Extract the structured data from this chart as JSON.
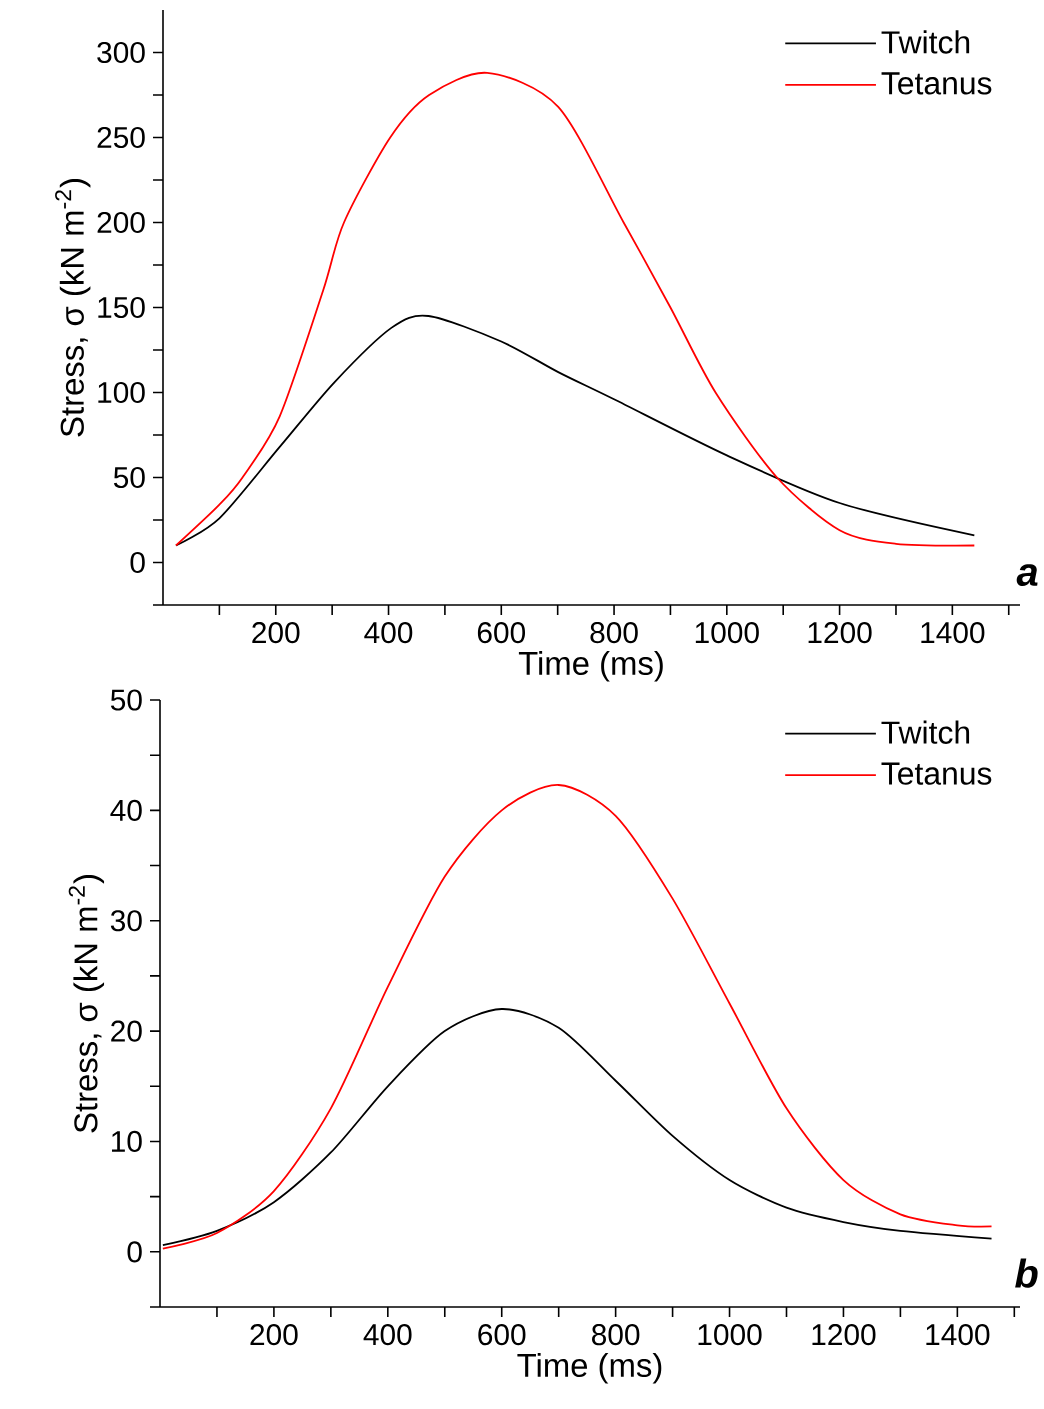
{
  "chart_data": [
    {
      "type": "line",
      "xlabel": "Time (ms)",
      "ylabel": "Stress, σ (kN m$^{-2}$)",
      "annotations": [
        "a"
      ],
      "legend": "top right",
      "xlim": [
        0,
        1520
      ],
      "ylim": [
        -25,
        325
      ],
      "xticks": [
        {
          "value": 100,
          "label": null
        },
        200,
        {
          "value": 300,
          "label": null
        },
        400,
        {
          "value": 500,
          "label": null
        },
        600,
        {
          "value": 700,
          "label": null
        },
        800,
        {
          "value": 900,
          "label": null
        },
        1000,
        {
          "value": 1100,
          "label": null
        },
        1200,
        {
          "value": 1300,
          "label": null
        },
        1400,
        {
          "value": 1500,
          "label": null
        }
      ],
      "yticks": [
        {
          "value": -25,
          "label": null
        },
        0,
        {
          "value": 25,
          "label": null
        },
        50,
        {
          "value": 75,
          "label": null
        },
        100,
        {
          "value": 125,
          "label": null
        },
        150,
        {
          "value": 175,
          "label": null
        },
        200,
        {
          "value": 225,
          "label": null
        },
        250,
        {
          "value": 275,
          "label": null
        },
        300
      ],
      "series": [
        {
          "name": "Twitch",
          "color": "#000000",
          "x": [
            23,
            100,
            207,
            304,
            405,
            471,
            600,
            701,
            800,
            1000,
            1200,
            1439
          ],
          "values": [
            10,
            26,
            68,
            106,
            138,
            145,
            130,
            112,
            96,
            63,
            35,
            16
          ]
        },
        {
          "name": "Tetanus",
          "color": "#ff0000",
          "x": [
            23,
            100,
            141,
            207,
            284,
            321,
            403,
            472,
            575,
            701,
            817,
            900,
            980,
            1089,
            1200,
            1300,
            1439
          ],
          "values": [
            10,
            34,
            50,
            86,
            160,
            200,
            250,
            275,
            288,
            268,
            200,
            150,
            100,
            50,
            19,
            11,
            10
          ]
        }
      ]
    },
    {
      "type": "line",
      "xlabel": "Time (ms)",
      "ylabel": "Stress, σ (kN m$^{-2}$)",
      "annotations": [
        "b"
      ],
      "legend": "top right",
      "xlim": [
        0,
        1510
      ],
      "ylim": [
        -5,
        50
      ],
      "xticks": [
        {
          "value": 100,
          "label": null
        },
        200,
        {
          "value": 300,
          "label": null
        },
        400,
        {
          "value": 500,
          "label": null
        },
        600,
        {
          "value": 700,
          "label": null
        },
        800,
        {
          "value": 900,
          "label": null
        },
        1000,
        {
          "value": 1100,
          "label": null
        },
        1200,
        {
          "value": 1300,
          "label": null
        },
        1400,
        {
          "value": 1500,
          "label": null
        }
      ],
      "yticks": [
        {
          "value": -5,
          "label": null
        },
        0,
        {
          "value": 5,
          "label": null
        },
        10,
        {
          "value": 15,
          "label": null
        },
        20,
        {
          "value": 25,
          "label": null
        },
        30,
        {
          "value": 35,
          "label": null
        },
        40,
        {
          "value": 45,
          "label": null
        },
        50
      ],
      "series": [
        {
          "name": "Twitch",
          "color": "#000000",
          "x": [
            5,
            100,
            200,
            300,
            400,
            500,
            600,
            700,
            800,
            900,
            1000,
            1100,
            1200,
            1300,
            1460
          ],
          "values": [
            0.6,
            1.9,
            4.5,
            9,
            15,
            20,
            22,
            20.3,
            15.5,
            10.5,
            6.5,
            4,
            2.7,
            1.9,
            1.2
          ]
        },
        {
          "name": "Tetanus",
          "color": "#ff0000",
          "x": [
            5,
            100,
            200,
            300,
            400,
            500,
            600,
            700,
            800,
            900,
            1000,
            1100,
            1200,
            1300,
            1400,
            1460
          ],
          "values": [
            0.3,
            1.7,
            5.5,
            13,
            24,
            34,
            40,
            42.3,
            39.5,
            32,
            22.5,
            13,
            6.5,
            3.4,
            2.4,
            2.3
          ]
        }
      ]
    }
  ]
}
